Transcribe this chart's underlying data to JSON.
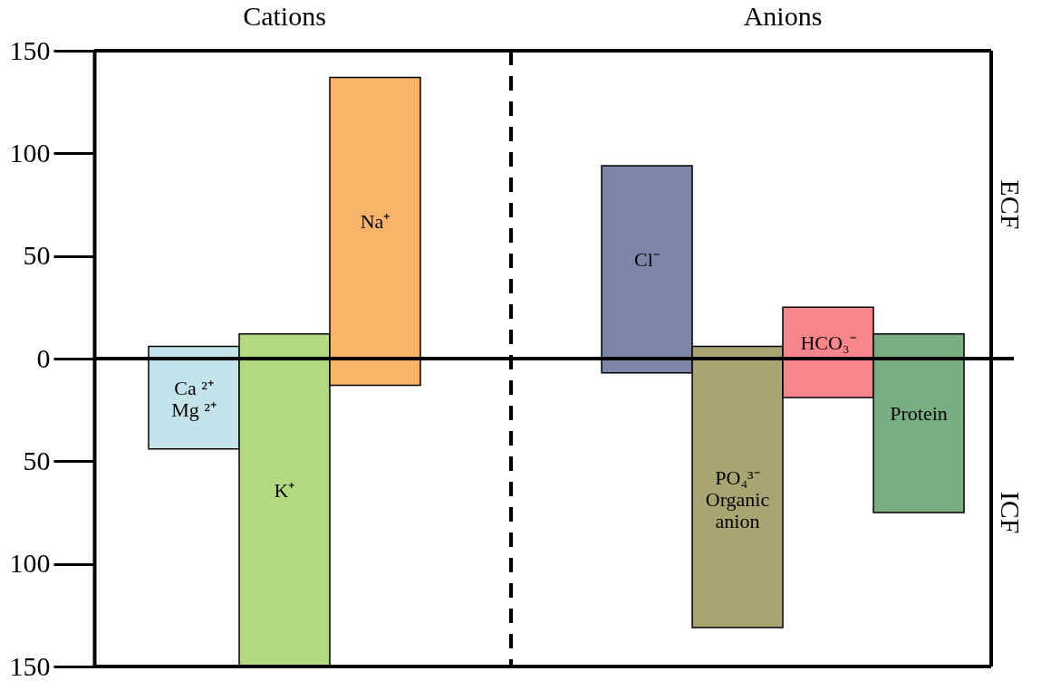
{
  "chart_data": {
    "type": "bar",
    "categories": [
      "Ca ²⁺\nMg ²⁺",
      "K⁺",
      "Na⁺",
      null,
      null,
      "Cl⁻",
      "PO₄³⁻\nOrganic\nanion",
      "HCO₃⁻",
      "Protein"
    ],
    "base": [
      -44,
      -150,
      -13,
      null,
      null,
      -7,
      -131,
      -19,
      -75
    ],
    "values": [
      50,
      162,
      150,
      null,
      null,
      101,
      137,
      44,
      87
    ],
    "colors": [
      "#c2e3ea",
      "#b3d97e",
      "#f9b46a",
      null,
      null,
      "#7d86a6",
      "#a8a572",
      "#f7868c",
      "#78ae82"
    ],
    "ylim": [
      -150,
      150
    ],
    "yticks": [
      {
        "value": -150,
        "label": "150"
      },
      {
        "value": -100,
        "label": "100"
      },
      {
        "value": -50,
        "label": "50"
      },
      0,
      50,
      100,
      150
    ],
    "annotations": [
      "Cations",
      "Anions",
      "ECF",
      "ICF"
    ],
    "grid": false
  }
}
